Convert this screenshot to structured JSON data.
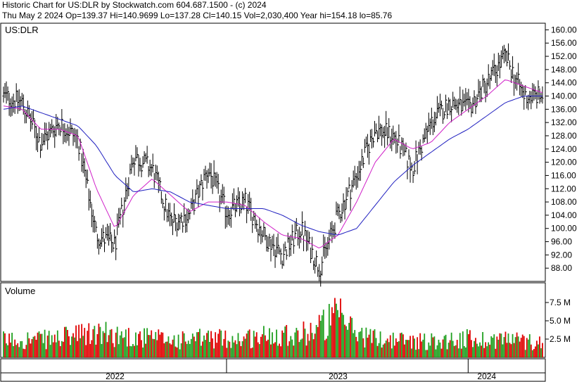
{
  "header": {
    "line1": "Historic Chart for US:DLR by Stockwatch.com 604.687.1500 - (c) 2024",
    "line2": "Thu May  2 2024   Op=139.37   Hi=140.9699   Lo=137.28   Cl=140.15   Vol=2,030,400   Year hi=154.18   lo=85.76"
  },
  "chart_data": [
    {
      "type": "ohlc",
      "title": "US:DLR",
      "ylim": [
        84,
        162
      ],
      "ticks": [
        "160.00",
        "156.00",
        "152.00",
        "148.00",
        "144.00",
        "140.00",
        "136.00",
        "132.00",
        "128.00",
        "124.00",
        "120.00",
        "116.00",
        "112.00",
        "108.00",
        "104.00",
        "100.00",
        "96.00",
        "92.00",
        "88.00"
      ],
      "x": [
        "2021-12",
        "2022-01",
        "2022-02",
        "2022-03",
        "2022-04",
        "2022-05",
        "2022-06",
        "2022-07",
        "2022-08",
        "2022-09",
        "2022-10",
        "2022-11",
        "2022-12",
        "2023-01",
        "2023-02",
        "2023-03",
        "2023-04",
        "2023-05",
        "2023-06",
        "2023-07",
        "2023-08",
        "2023-09",
        "2023-10",
        "2023-11",
        "2023-12",
        "2024-01",
        "2024-02",
        "2024-03",
        "2024-04",
        "2024-05"
      ],
      "close": [
        140,
        138,
        126,
        132,
        127,
        98,
        95,
        122,
        118,
        102,
        104,
        118,
        105,
        108,
        98,
        92,
        100,
        88,
        104,
        116,
        130,
        128,
        118,
        132,
        138,
        136,
        144,
        152,
        140,
        140
      ],
      "series": [
        {
          "values": [
            137,
            136,
            130,
            130,
            128,
            112,
            100,
            110,
            115,
            110,
            105,
            108,
            108,
            107,
            102,
            98,
            97,
            94,
            98,
            108,
            120,
            127,
            124,
            126,
            132,
            136,
            140,
            145,
            143,
            141
          ]
        },
        {
          "values": [
            136,
            137,
            135,
            133,
            131,
            125,
            116,
            111,
            112,
            111,
            108,
            107,
            106,
            106,
            106,
            104,
            101,
            99,
            98,
            100,
            107,
            114,
            119,
            123,
            127,
            130,
            134,
            138,
            140,
            140
          ]
        }
      ],
      "x_labels": [
        "2022",
        "2023",
        "2024"
      ],
      "x_label_positions": [
        "2022-06",
        "2023-06",
        "2024-02"
      ],
      "year_dividers": [
        "2022-12",
        "2024-01"
      ]
    },
    {
      "type": "bar",
      "title": "Volume",
      "ylim": [
        0,
        10
      ],
      "ticks": [
        "7.5 M",
        "5.0 M",
        "2.5 M"
      ],
      "tick_values": [
        7.5,
        5.0,
        2.5
      ],
      "x": [
        "2021-12",
        "2022-01",
        "2022-02",
        "2022-03",
        "2022-04",
        "2022-05",
        "2022-06",
        "2022-07",
        "2022-08",
        "2022-09",
        "2022-10",
        "2022-11",
        "2022-12",
        "2023-01",
        "2023-02",
        "2023-03",
        "2023-04",
        "2023-05",
        "2023-06",
        "2023-07",
        "2023-08",
        "2023-09",
        "2023-10",
        "2023-11",
        "2023-12",
        "2024-01",
        "2024-02",
        "2024-03",
        "2024-04",
        "2024-05"
      ],
      "values": [
        2.3,
        2.5,
        2.4,
        2.6,
        3.0,
        3.2,
        3.1,
        2.8,
        2.6,
        2.4,
        2.3,
        2.7,
        2.5,
        2.6,
        2.9,
        3.4,
        3.1,
        4.2,
        5.6,
        3.3,
        2.6,
        2.4,
        2.3,
        2.2,
        2.4,
        2.5,
        2.4,
        2.6,
        2.2,
        2.1
      ],
      "colors": {
        "up": "#20a020",
        "down": "#e00000"
      }
    }
  ]
}
